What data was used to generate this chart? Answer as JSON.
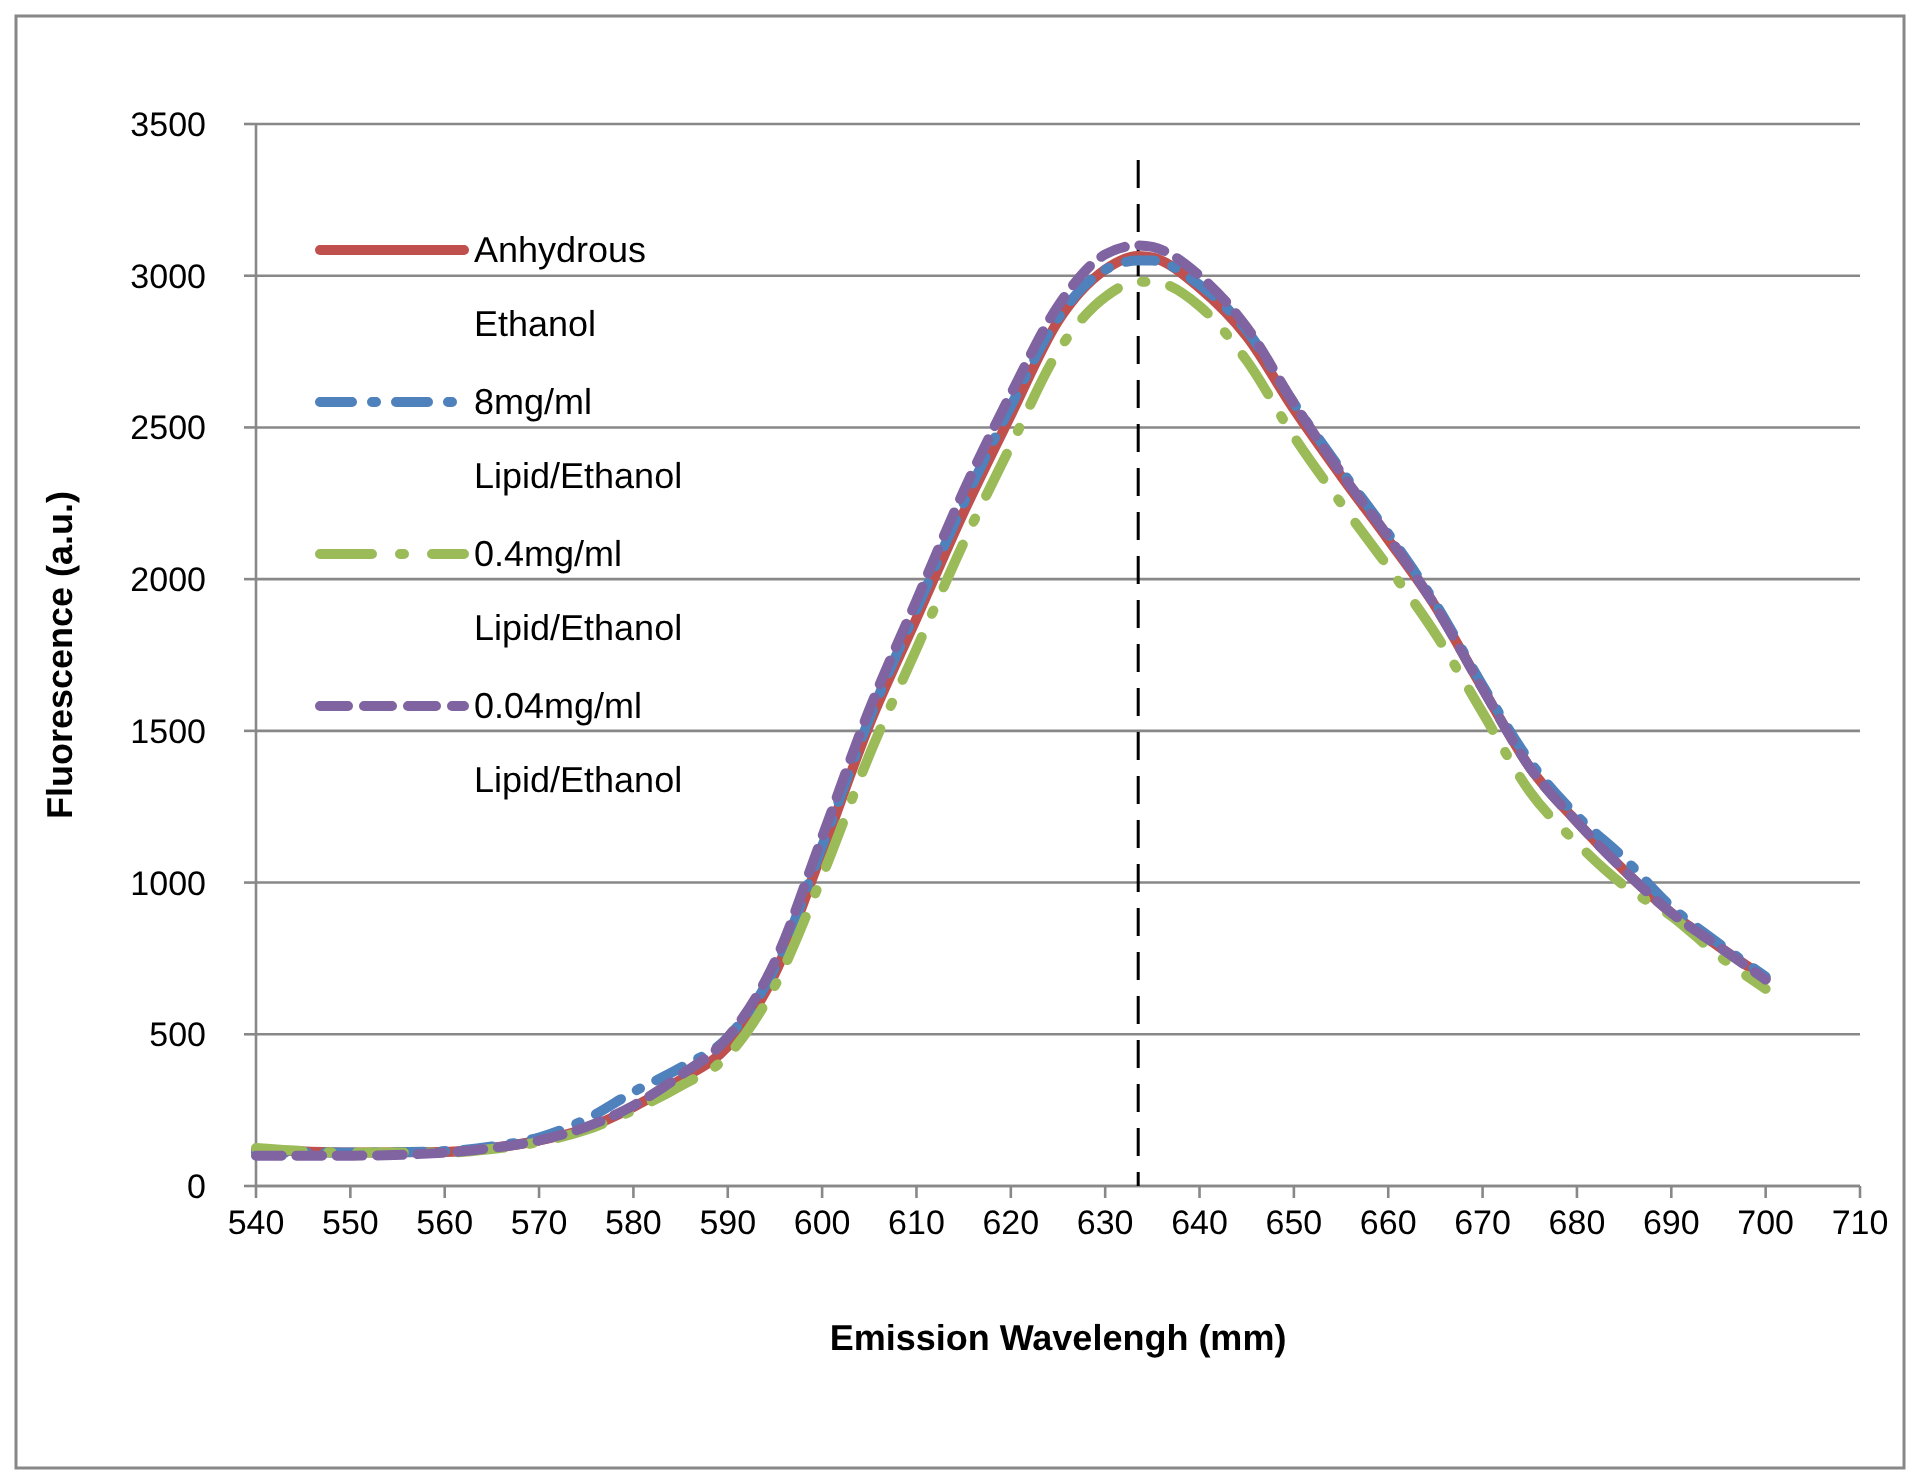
{
  "chart_data": {
    "type": "line",
    "xlabel": "Emission Wavelengh (mm)",
    "ylabel": "Fluorescence (a.u.)",
    "xlim": [
      540,
      710
    ],
    "xticks": [
      540,
      550,
      560,
      570,
      580,
      590,
      600,
      610,
      620,
      630,
      640,
      650,
      660,
      670,
      680,
      690,
      700,
      710
    ],
    "ylim": [
      0,
      3500
    ],
    "yticks": [
      0,
      500,
      1000,
      1500,
      2000,
      2500,
      3000,
      3500
    ],
    "grid": "y",
    "legend": "top left",
    "marker": "none",
    "x": [
      540,
      550,
      560,
      565,
      570,
      575,
      580,
      585,
      590,
      595,
      600,
      605,
      610,
      615,
      620,
      625,
      630,
      633.5,
      635,
      640,
      645,
      650,
      655,
      660,
      665,
      670,
      675,
      680,
      685,
      690,
      695,
      700
    ],
    "ref_lines": [
      {
        "axis": "x",
        "value": 633.5,
        "color": "#000000",
        "line_style": "dashed"
      }
    ],
    "series": [
      {
        "name": "Anhydrous Ethanol",
        "color": "#c0504d",
        "line_style": "solid",
        "values": [
          120,
          110,
          112,
          125,
          150,
          190,
          260,
          350,
          460,
          700,
          1100,
          1520,
          1870,
          2220,
          2540,
          2850,
          3020,
          3065,
          3060,
          2960,
          2800,
          2560,
          2340,
          2130,
          1910,
          1640,
          1380,
          1200,
          1040,
          900,
          790,
          685
        ]
      },
      {
        "name": "8mg/ml Lipid/Ethanol",
        "color": "#4f81bd",
        "line_style": "dashdot",
        "values": [
          110,
          110,
          115,
          130,
          160,
          220,
          310,
          390,
          490,
          720,
          1120,
          1540,
          1900,
          2250,
          2570,
          2860,
          3020,
          3050,
          3050,
          2970,
          2820,
          2580,
          2360,
          2150,
          1920,
          1650,
          1400,
          1220,
          1080,
          920,
          800,
          690
        ]
      },
      {
        "name": "0.4mg/ml Lipid/Ethanol",
        "color": "#9bbb59",
        "line_style": "longdashdot",
        "values": [
          125,
          110,
          110,
          122,
          145,
          185,
          250,
          330,
          430,
          660,
          1020,
          1420,
          1770,
          2120,
          2440,
          2750,
          2930,
          2980,
          2980,
          2900,
          2720,
          2470,
          2250,
          2040,
          1820,
          1560,
          1300,
          1130,
          990,
          890,
          760,
          650
        ]
      },
      {
        "name": "0.04mg/ml Lipid/Ethanol",
        "color": "#8064a2",
        "line_style": "dashed",
        "values": [
          100,
          100,
          110,
          125,
          150,
          195,
          265,
          365,
          490,
          740,
          1150,
          1570,
          1930,
          2290,
          2610,
          2900,
          3070,
          3100,
          3095,
          3000,
          2830,
          2580,
          2350,
          2140,
          1910,
          1640,
          1380,
          1200,
          1040,
          900,
          790,
          680
        ]
      }
    ]
  }
}
